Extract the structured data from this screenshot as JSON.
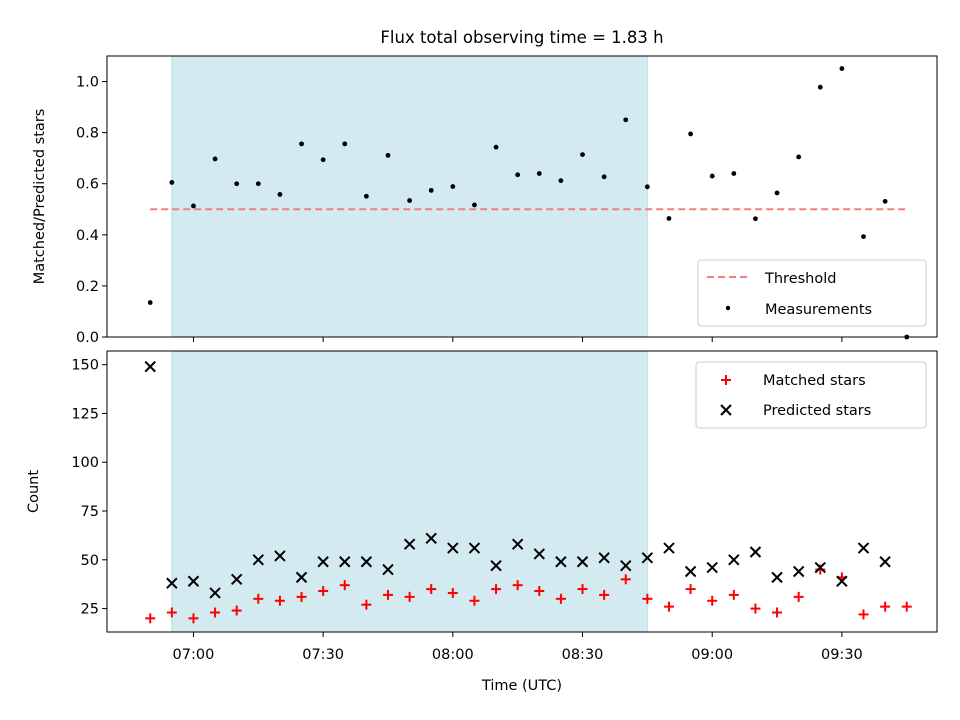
{
  "chart_data": [
    {
      "type": "scatter",
      "title": "Flux total observing time = 1.83 h",
      "xlabel": "",
      "ylabel": "Matched/Predicted stars",
      "ylim": [
        0.0,
        1.1
      ],
      "yticks": [
        "0.0",
        "0.2",
        "0.4",
        "0.6",
        "0.8",
        "1.0"
      ],
      "yticks_values": [
        0.0,
        0.2,
        0.4,
        0.6,
        0.8,
        1.0
      ],
      "x_range": [
        "06:40",
        "09:52"
      ],
      "xticks": [
        "07:00",
        "07:30",
        "08:00",
        "08:30",
        "09:00",
        "09:30"
      ],
      "x_tick_labels_visible": false,
      "shaded_interval": [
        "06:55",
        "08:45"
      ],
      "shade_color": "#d3eaf0",
      "legend_position": "lower-right",
      "threshold": {
        "name": "Threshold",
        "value": 0.5,
        "x_start": "06:50",
        "x_end": "09:45",
        "color": "#f08080"
      },
      "series": [
        {
          "name": "Measurements",
          "color": "#000000",
          "marker": "dot",
          "x": [
            "06:50",
            "06:55",
            "07:00",
            "07:05",
            "07:10",
            "07:15",
            "07:20",
            "07:25",
            "07:30",
            "07:35",
            "07:40",
            "07:45",
            "07:50",
            "07:55",
            "08:00",
            "08:05",
            "08:10",
            "08:15",
            "08:20",
            "08:25",
            "08:30",
            "08:35",
            "08:40",
            "08:45",
            "08:50",
            "08:55",
            "09:00",
            "09:05",
            "09:10",
            "09:15",
            "09:20",
            "09:25",
            "09:30",
            "09:35",
            "09:40",
            "09:45"
          ],
          "y": [
            0.135,
            0.605,
            0.513,
            0.697,
            0.6,
            0.6,
            0.558,
            0.756,
            0.694,
            0.756,
            0.551,
            0.711,
            0.534,
            0.574,
            0.589,
            0.517,
            0.743,
            0.635,
            0.64,
            0.612,
            0.714,
            0.627,
            0.85,
            0.588,
            0.464,
            0.795,
            0.63,
            0.64,
            0.463,
            0.564,
            0.705,
            0.978,
            1.051,
            0.393,
            0.531,
            0.0
          ]
        }
      ]
    },
    {
      "type": "scatter",
      "title": "",
      "xlabel": "Time (UTC)",
      "ylabel": "Count",
      "ylim": [
        13,
        157
      ],
      "yticks": [
        "25",
        "50",
        "75",
        "100",
        "125",
        "150"
      ],
      "yticks_values": [
        25,
        50,
        75,
        100,
        125,
        150
      ],
      "x_range": [
        "06:40",
        "09:52"
      ],
      "xticks": [
        "07:00",
        "07:30",
        "08:00",
        "08:30",
        "09:00",
        "09:30"
      ],
      "shaded_interval": [
        "06:55",
        "08:45"
      ],
      "shade_color": "#d3eaf0",
      "legend_position": "upper-right",
      "series": [
        {
          "name": "Matched stars",
          "color": "#ff0000",
          "marker": "plus",
          "x": [
            "06:50",
            "06:55",
            "07:00",
            "07:05",
            "07:10",
            "07:15",
            "07:20",
            "07:25",
            "07:30",
            "07:35",
            "07:40",
            "07:45",
            "07:50",
            "07:55",
            "08:00",
            "08:05",
            "08:10",
            "08:15",
            "08:20",
            "08:25",
            "08:30",
            "08:35",
            "08:40",
            "08:45",
            "08:50",
            "08:55",
            "09:00",
            "09:05",
            "09:10",
            "09:15",
            "09:20",
            "09:25",
            "09:30",
            "09:35",
            "09:40",
            "09:45"
          ],
          "y": [
            20,
            23,
            20,
            23,
            24,
            30,
            29,
            31,
            34,
            37,
            27,
            32,
            31,
            35,
            33,
            29,
            35,
            37,
            34,
            30,
            35,
            32,
            40,
            30,
            26,
            35,
            29,
            32,
            25,
            23,
            31,
            45,
            41,
            22,
            26,
            26
          ]
        },
        {
          "name": "Predicted stars",
          "color": "#000000",
          "marker": "x",
          "x": [
            "06:50",
            "06:55",
            "07:00",
            "07:05",
            "07:10",
            "07:15",
            "07:20",
            "07:25",
            "07:30",
            "07:35",
            "07:40",
            "07:45",
            "07:50",
            "07:55",
            "08:00",
            "08:05",
            "08:10",
            "08:15",
            "08:20",
            "08:25",
            "08:30",
            "08:35",
            "08:40",
            "08:45",
            "08:50",
            "08:55",
            "09:00",
            "09:05",
            "09:10",
            "09:15",
            "09:20",
            "09:25",
            "09:30",
            "09:35",
            "09:40"
          ],
          "y": [
            149,
            38,
            39,
            33,
            40,
            50,
            52,
            41,
            49,
            49,
            49,
            45,
            58,
            61,
            56,
            56,
            47,
            58,
            53,
            49,
            49,
            51,
            47,
            51,
            56,
            44,
            46,
            50,
            54,
            41,
            44,
            46,
            39,
            56,
            49
          ]
        }
      ]
    }
  ]
}
